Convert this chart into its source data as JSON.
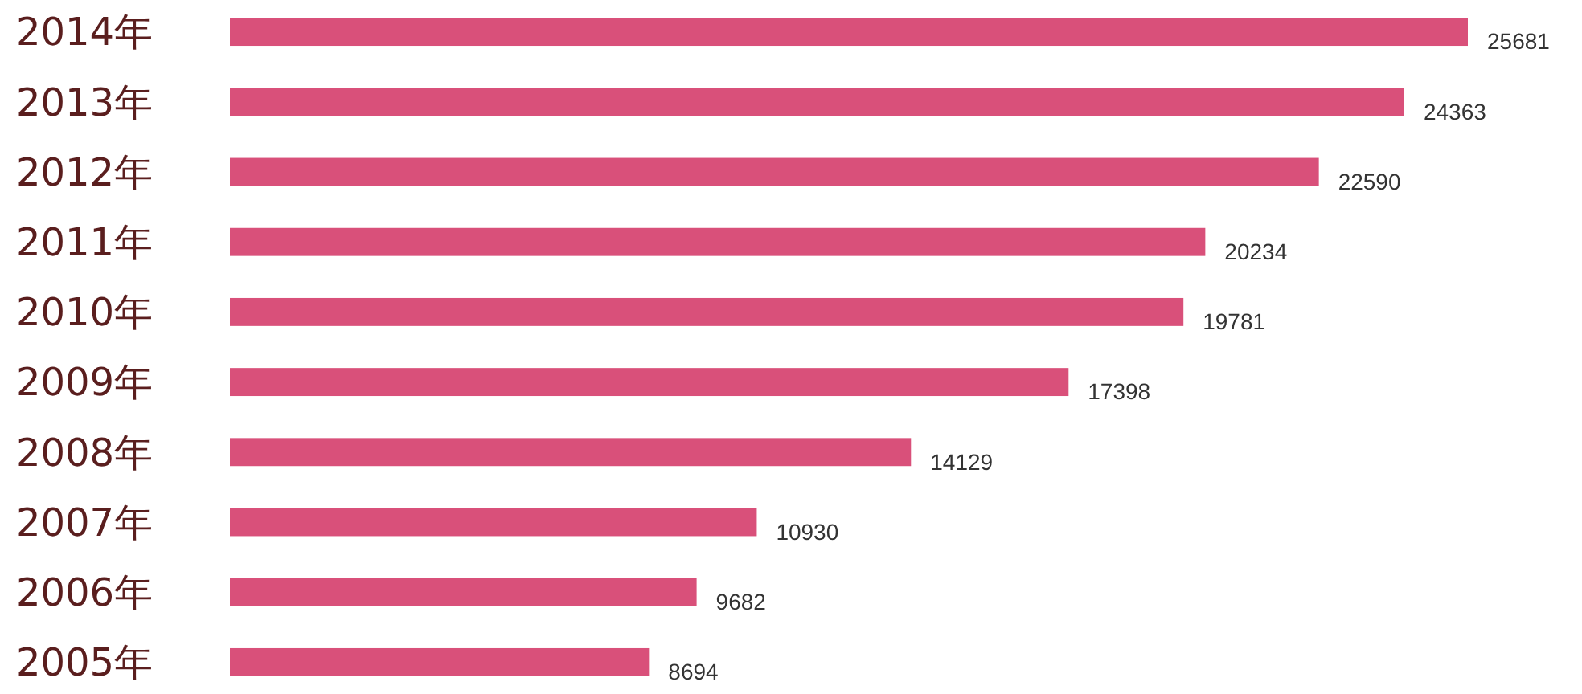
{
  "chart_data": {
    "type": "bar",
    "orientation": "horizontal",
    "categories": [
      "2014年",
      "2013年",
      "2012年",
      "2011年",
      "2010年",
      "2009年",
      "2008年",
      "2007年",
      "2006年",
      "2005年"
    ],
    "values": [
      25681,
      24363,
      22590,
      20234,
      19781,
      17398,
      14129,
      10930,
      9682,
      8694
    ],
    "color": "#d9507a",
    "data_labels": true
  }
}
